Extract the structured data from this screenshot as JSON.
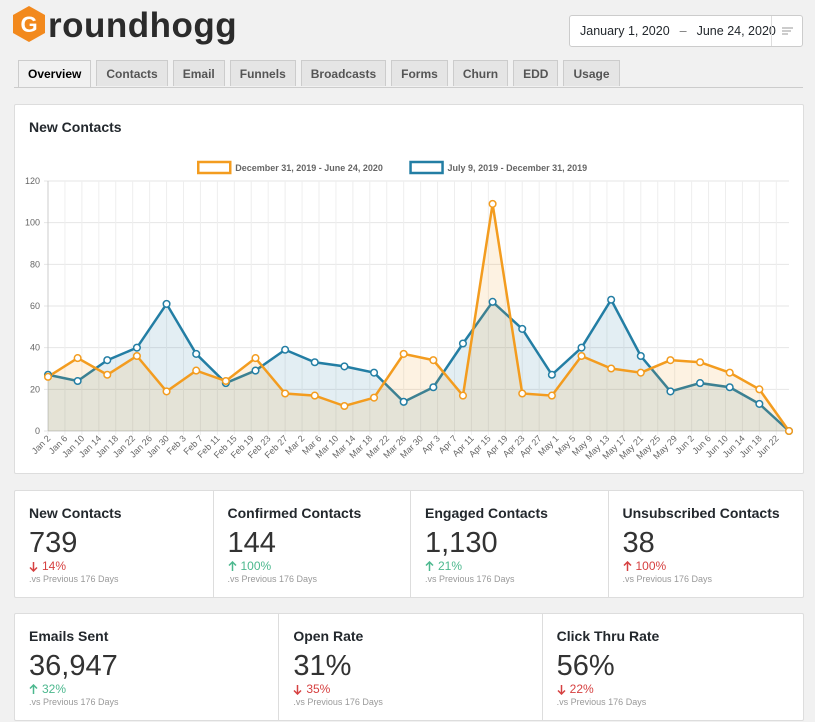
{
  "header": {
    "logo_letter": "G",
    "logo_text": "roundhogg"
  },
  "date_range": {
    "start": "January 1, 2020",
    "separator": "–",
    "end": "June 24, 2020"
  },
  "tabs": [
    "Overview",
    "Contacts",
    "Email",
    "Funnels",
    "Broadcasts",
    "Forms",
    "Churn",
    "EDD",
    "Usage"
  ],
  "chart_data": {
    "type": "line",
    "title": "New Contacts",
    "x": [
      0,
      7,
      14,
      21,
      28,
      35,
      42,
      49,
      56,
      63,
      70,
      77,
      84,
      91,
      98,
      105,
      112,
      119,
      126,
      133,
      140,
      147,
      154,
      161,
      168,
      175
    ],
    "xlim": [
      0,
      175
    ],
    "xticks": [
      {
        "value": 0,
        "label": "Jan 2"
      },
      {
        "value": 4,
        "label": "Jan 6"
      },
      {
        "value": 8,
        "label": "Jan 10"
      },
      {
        "value": 12,
        "label": "Jan 14"
      },
      {
        "value": 16,
        "label": "Jan 18"
      },
      {
        "value": 20,
        "label": "Jan 22"
      },
      {
        "value": 24,
        "label": "Jan 26"
      },
      {
        "value": 28,
        "label": "Jan 30"
      },
      {
        "value": 32,
        "label": "Feb 3"
      },
      {
        "value": 36,
        "label": "Feb 7"
      },
      {
        "value": 40,
        "label": "Feb 11"
      },
      {
        "value": 44,
        "label": "Feb 15"
      },
      {
        "value": 48,
        "label": "Feb 19"
      },
      {
        "value": 52,
        "label": "Feb 23"
      },
      {
        "value": 56,
        "label": "Feb 27"
      },
      {
        "value": 60,
        "label": "Mar 2"
      },
      {
        "value": 64,
        "label": "Mar 6"
      },
      {
        "value": 68,
        "label": "Mar 10"
      },
      {
        "value": 72,
        "label": "Mar 14"
      },
      {
        "value": 76,
        "label": "Mar 18"
      },
      {
        "value": 80,
        "label": "Mar 22"
      },
      {
        "value": 84,
        "label": "Mar 26"
      },
      {
        "value": 88,
        "label": "Mar 30"
      },
      {
        "value": 92,
        "label": "Apr 3"
      },
      {
        "value": 96,
        "label": "Apr 7"
      },
      {
        "value": 100,
        "label": "Apr 11"
      },
      {
        "value": 104,
        "label": "Apr 15"
      },
      {
        "value": 108,
        "label": "Apr 19"
      },
      {
        "value": 112,
        "label": "Apr 23"
      },
      {
        "value": 116,
        "label": "Apr 27"
      },
      {
        "value": 120,
        "label": "May 1"
      },
      {
        "value": 124,
        "label": "May 5"
      },
      {
        "value": 128,
        "label": "May 9"
      },
      {
        "value": 132,
        "label": "May 13"
      },
      {
        "value": 136,
        "label": "May 17"
      },
      {
        "value": 140,
        "label": "May 21"
      },
      {
        "value": 144,
        "label": "May 25"
      },
      {
        "value": 148,
        "label": "May 29"
      },
      {
        "value": 152,
        "label": "Jun 2"
      },
      {
        "value": 156,
        "label": "Jun 6"
      },
      {
        "value": 160,
        "label": "Jun 10"
      },
      {
        "value": 164,
        "label": "Jun 14"
      },
      {
        "value": 168,
        "label": "Jun 18"
      },
      {
        "value": 172,
        "label": "Jun 22"
      }
    ],
    "ylim": [
      0,
      120
    ],
    "yticks": [
      0,
      20,
      40,
      60,
      80,
      100,
      120
    ],
    "grid": true,
    "legend": "top",
    "series": [
      {
        "name": "December 31, 2019 - June 24, 2020",
        "color": "#f39c1f",
        "values": [
          26,
          35,
          27,
          36,
          19,
          29,
          24,
          35,
          18,
          17,
          12,
          16,
          37,
          34,
          17,
          109,
          18,
          17,
          36,
          30,
          28,
          34,
          33,
          28,
          20,
          0
        ]
      },
      {
        "name": "July 9, 2019 - December 31, 2019",
        "color": "#237ea4",
        "values": [
          27,
          24,
          34,
          40,
          61,
          37,
          23,
          29,
          39,
          33,
          31,
          28,
          14,
          21,
          42,
          62,
          49,
          27,
          40,
          63,
          36,
          19,
          23,
          21,
          13,
          0
        ]
      }
    ]
  },
  "stats_rows": [
    [
      {
        "label": "New Contacts",
        "value": "739",
        "change": "14%",
        "direction": "down",
        "note": ".vs Previous 176 Days"
      },
      {
        "label": "Confirmed Contacts",
        "value": "144",
        "change": "100%",
        "direction": "up",
        "note": ".vs Previous 176 Days"
      },
      {
        "label": "Engaged Contacts",
        "value": "1,130",
        "change": "21%",
        "direction": "up",
        "note": ".vs Previous 176 Days"
      },
      {
        "label": "Unsubscribed Contacts",
        "value": "38",
        "change": "100%",
        "direction": "up-bad",
        "note": ".vs Previous 176 Days"
      }
    ],
    [
      {
        "label": "Emails Sent",
        "value": "36,947",
        "change": "32%",
        "direction": "up",
        "note": ".vs Previous 176 Days"
      },
      {
        "label": "Open Rate",
        "value": "31%",
        "change": "35%",
        "direction": "down",
        "note": ".vs Previous 176 Days"
      },
      {
        "label": "Click Thru Rate",
        "value": "56%",
        "change": "22%",
        "direction": "down",
        "note": ".vs Previous 176 Days"
      }
    ]
  ]
}
